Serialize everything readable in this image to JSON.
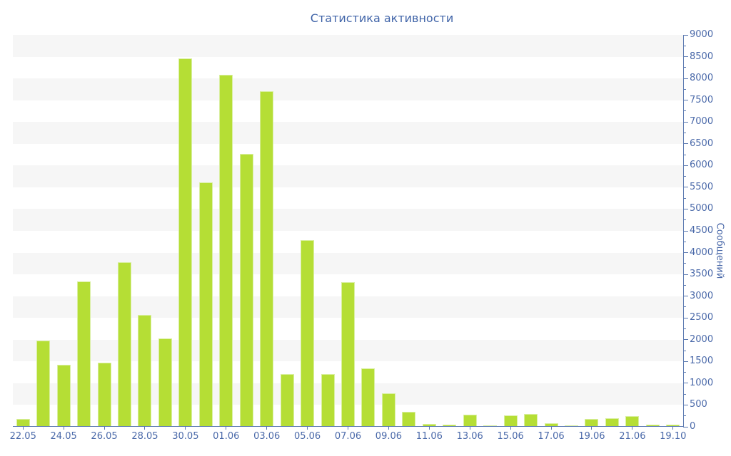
{
  "page_title": "Статистика активности",
  "chart_data": {
    "type": "bar",
    "title": "Статистика активности",
    "xlabel": "",
    "ylabel": "Сообщений",
    "ylim": [
      0,
      9000
    ],
    "y_major_step": 500,
    "y_minor_step": 250,
    "legend_position": "none",
    "grid": "horizontal-stripes-every-500",
    "categories": [
      "22.05",
      "",
      "24.05",
      "",
      "26.05",
      "",
      "28.05",
      "",
      "30.05",
      "",
      "01.06",
      "",
      "03.06",
      "",
      "05.06",
      "",
      "07.06",
      "",
      "09.06",
      "",
      "11.06",
      "",
      "13.06",
      "",
      "15.06",
      "",
      "17.06",
      "",
      "19.06",
      "",
      "21.06",
      "",
      "19.10"
    ],
    "values": [
      170,
      1960,
      1410,
      3320,
      1450,
      3760,
      2560,
      2010,
      8450,
      5600,
      8070,
      6250,
      7690,
      1190,
      4270,
      1190,
      3300,
      1330,
      760,
      330,
      50,
      40,
      270,
      20,
      250,
      280,
      60,
      15,
      160,
      175,
      225,
      30,
      40
    ],
    "colors": {
      "bar_fill": "#b5de35",
      "bar_edge": "#d9efa0",
      "axis": "#5b79b0",
      "tick_text": "#4a69a9",
      "title_text": "#4064a8",
      "stripe": "#f6f6f6",
      "background": "#ffffff"
    }
  }
}
